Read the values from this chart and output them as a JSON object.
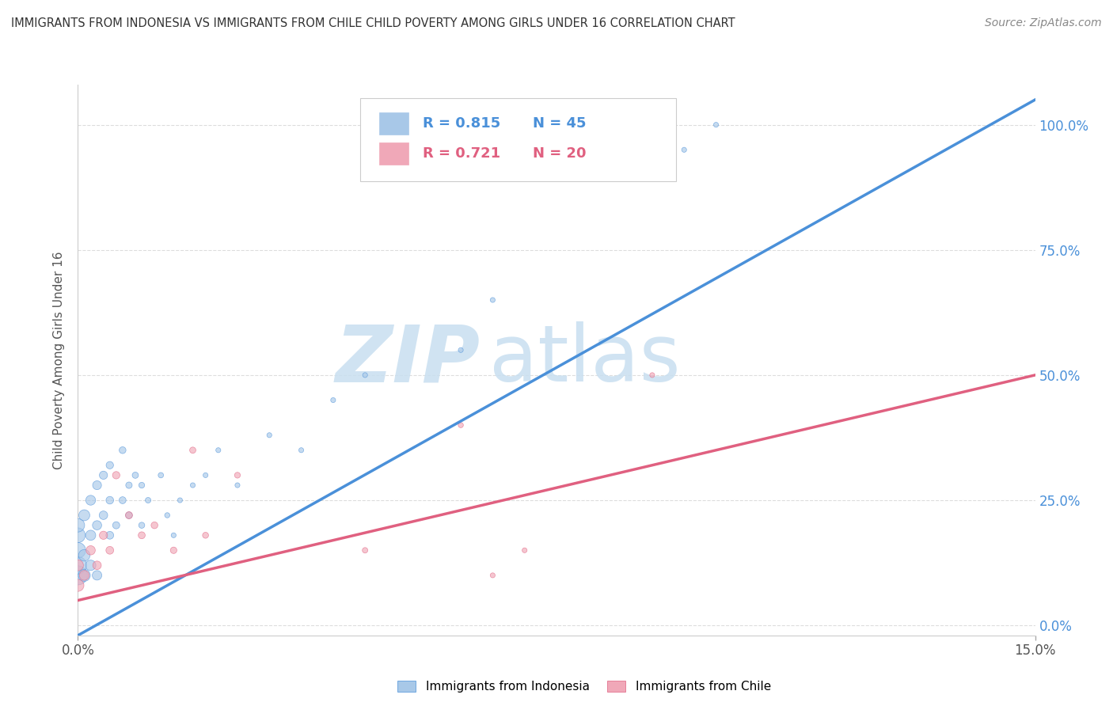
{
  "title": "IMMIGRANTS FROM INDONESIA VS IMMIGRANTS FROM CHILE CHILD POVERTY AMONG GIRLS UNDER 16 CORRELATION CHART",
  "source": "Source: ZipAtlas.com",
  "ylabel": "Child Poverty Among Girls Under 16",
  "xlim": [
    0.0,
    0.15
  ],
  "ylim": [
    -0.02,
    1.08
  ],
  "xtick_positions": [
    0.0,
    0.15
  ],
  "xtick_labels": [
    "0.0%",
    "15.0%"
  ],
  "ytick_positions": [
    0.0,
    0.25,
    0.5,
    0.75,
    1.0
  ],
  "ytick_labels": [
    "0.0%",
    "25.0%",
    "50.0%",
    "75.0%",
    "100.0%"
  ],
  "indonesia_color": "#A8C8E8",
  "chile_color": "#F0A8B8",
  "indonesia_line_color": "#4A90D9",
  "chile_line_color": "#E06080",
  "indonesia_R": 0.815,
  "indonesia_N": 45,
  "chile_R": 0.721,
  "chile_N": 20,
  "watermark_zip": "ZIP",
  "watermark_atlas": "atlas",
  "watermark_color_zip": "#C8DFF0",
  "watermark_color_atlas": "#C8DFF0",
  "indonesia_scatter_x": [
    0.0,
    0.0,
    0.0,
    0.0,
    0.0,
    0.001,
    0.001,
    0.001,
    0.002,
    0.002,
    0.002,
    0.003,
    0.003,
    0.003,
    0.004,
    0.004,
    0.005,
    0.005,
    0.005,
    0.006,
    0.007,
    0.007,
    0.008,
    0.008,
    0.009,
    0.01,
    0.01,
    0.011,
    0.013,
    0.014,
    0.015,
    0.016,
    0.018,
    0.02,
    0.022,
    0.025,
    0.03,
    0.035,
    0.04,
    0.045,
    0.06,
    0.065,
    0.09,
    0.095,
    0.1
  ],
  "indonesia_scatter_y": [
    0.1,
    0.12,
    0.15,
    0.18,
    0.2,
    0.1,
    0.14,
    0.22,
    0.12,
    0.18,
    0.25,
    0.1,
    0.2,
    0.28,
    0.22,
    0.3,
    0.18,
    0.25,
    0.32,
    0.2,
    0.25,
    0.35,
    0.22,
    0.28,
    0.3,
    0.2,
    0.28,
    0.25,
    0.3,
    0.22,
    0.18,
    0.25,
    0.28,
    0.3,
    0.35,
    0.28,
    0.38,
    0.35,
    0.45,
    0.5,
    0.55,
    0.65,
    0.9,
    0.95,
    1.0
  ],
  "indonesia_scatter_sizes": [
    300,
    250,
    200,
    180,
    150,
    120,
    110,
    100,
    90,
    85,
    80,
    75,
    70,
    65,
    60,
    55,
    50,
    48,
    45,
    42,
    40,
    38,
    36,
    34,
    32,
    30,
    28,
    26,
    24,
    22,
    20,
    20,
    20,
    20,
    20,
    20,
    20,
    20,
    20,
    20,
    20,
    20,
    20,
    20,
    20
  ],
  "chile_scatter_x": [
    0.0,
    0.0,
    0.001,
    0.002,
    0.003,
    0.004,
    0.005,
    0.006,
    0.008,
    0.01,
    0.012,
    0.015,
    0.018,
    0.02,
    0.025,
    0.045,
    0.06,
    0.065,
    0.07,
    0.09
  ],
  "chile_scatter_y": [
    0.08,
    0.12,
    0.1,
    0.15,
    0.12,
    0.18,
    0.15,
    0.3,
    0.22,
    0.18,
    0.2,
    0.15,
    0.35,
    0.18,
    0.3,
    0.15,
    0.4,
    0.1,
    0.15,
    0.5
  ],
  "chile_scatter_sizes": [
    120,
    100,
    80,
    70,
    60,
    55,
    50,
    45,
    42,
    40,
    38,
    35,
    32,
    30,
    28,
    25,
    22,
    20,
    20,
    20
  ],
  "indo_line_x0": 0.0,
  "indo_line_y0": -0.02,
  "indo_line_x1": 0.15,
  "indo_line_y1": 1.05,
  "chile_line_x0": 0.0,
  "chile_line_y0": 0.05,
  "chile_line_x1": 0.15,
  "chile_line_y1": 0.5,
  "background_color": "#FFFFFF",
  "grid_color": "#DDDDDD",
  "right_tick_color": "#4A90D9",
  "left_spine_color": "#BBBBBB"
}
